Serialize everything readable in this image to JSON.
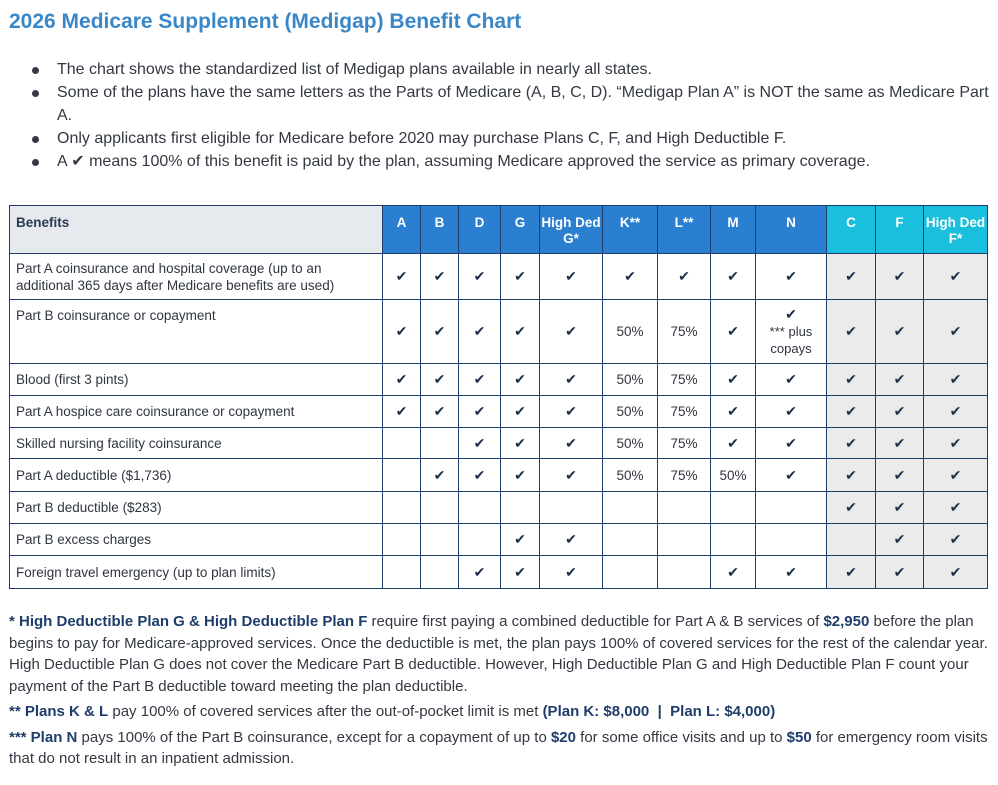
{
  "title": "2026 Medicare Supplement (Medigap) Benefit Chart",
  "bullets": [
    "The chart shows the standardized list of Medigap plans available in nearly all states.",
    "Some of the plans have the same letters as the Parts of Medicare (A, B, C, D). “Medigap Plan A” is NOT the same as Medicare Part A.",
    "Only applicants first eligible for Medicare before 2020 may purchase Plans C, F, and High Deductible F.",
    "A ✔ means 100% of this benefit is paid by the plan, assuming Medicare approved the service as primary coverage."
  ],
  "table": {
    "header": {
      "benefits": "Benefits",
      "plans": [
        {
          "label": "A",
          "color": "#2b7fd1"
        },
        {
          "label": "B",
          "color": "#2b7fd1"
        },
        {
          "label": "D",
          "color": "#2b7fd1"
        },
        {
          "label": "G",
          "color": "#2b7fd1"
        },
        {
          "label": "High Ded G*",
          "color": "#2b7fd1"
        },
        {
          "label": "K**",
          "color": "#2b7fd1"
        },
        {
          "label": "L**",
          "color": "#2b7fd1"
        },
        {
          "label": "M",
          "color": "#2b7fd1"
        },
        {
          "label": "N",
          "color": "#2b7fd1"
        },
        {
          "label": "C",
          "color": "#19bfdc"
        },
        {
          "label": "F",
          "color": "#19bfdc"
        },
        {
          "label": "High Ded F*",
          "color": "#19bfdc"
        }
      ]
    },
    "check": "✔",
    "n_copay_note": "*** plus copays",
    "rows": [
      {
        "benefit": "Part A coinsurance and hospital coverage (up to an additional 365 days after Medicare benefits are used)",
        "values": [
          "✔",
          "✔",
          "✔",
          "✔",
          "✔",
          "✔",
          "✔",
          "✔",
          "✔",
          "✔",
          "✔",
          "✔"
        ]
      },
      {
        "benefit": "Part B coinsurance or copayment",
        "values": [
          "✔",
          "✔",
          "✔",
          "✔",
          "✔",
          "50%",
          "75%",
          "✔",
          "N_NOTE",
          "✔",
          "✔",
          "✔"
        ]
      },
      {
        "benefit": "Blood (first 3 pints)",
        "values": [
          "✔",
          "✔",
          "✔",
          "✔",
          "✔",
          "50%",
          "75%",
          "✔",
          "✔",
          "✔",
          "✔",
          "✔"
        ]
      },
      {
        "benefit": "Part A hospice care coinsurance or copayment",
        "values": [
          "✔",
          "✔",
          "✔",
          "✔",
          "✔",
          "50%",
          "75%",
          "✔",
          "✔",
          "✔",
          "✔",
          "✔"
        ]
      },
      {
        "benefit": "Skilled nursing facility coinsurance",
        "values": [
          "",
          "",
          "✔",
          "✔",
          "✔",
          "50%",
          "75%",
          "✔",
          "✔",
          "✔",
          "✔",
          "✔"
        ]
      },
      {
        "benefit": "Part A deductible ($1,736)",
        "values": [
          "",
          "✔",
          "✔",
          "✔",
          "✔",
          "50%",
          "75%",
          "50%",
          "✔",
          "✔",
          "✔",
          "✔"
        ]
      },
      {
        "benefit": "Part B deductible ($283)",
        "values": [
          "",
          "",
          "",
          "",
          "",
          "",
          "",
          "",
          "",
          "✔",
          "✔",
          "✔"
        ]
      },
      {
        "benefit": "Part B excess charges",
        "values": [
          "",
          "",
          "",
          "✔",
          "✔",
          "",
          "",
          "",
          "",
          "",
          "✔",
          "✔"
        ]
      },
      {
        "benefit": "Foreign travel emergency (up to plan limits)",
        "values": [
          "",
          "",
          "✔",
          "✔",
          "✔",
          "",
          "",
          "✔",
          "✔",
          "✔",
          "✔",
          "✔"
        ]
      }
    ]
  },
  "notes": [
    {
      "segments": [
        {
          "text": "* High Deductible Plan G & High Deductible Plan F",
          "bold": true
        },
        {
          "text": " require first paying a combined deductible for Part A & B services of ",
          "bold": false
        },
        {
          "text": "$2,950",
          "bold": true
        },
        {
          "text": " before the plan begins to pay for Medicare-approved services. Once the deductible is met, the plan pays 100% of covered services for the rest of the calendar year. High Deductible Plan G does not cover the Medicare Part B deductible. However, High Deductible Plan G and High Deductible Plan F count your payment of the Part B deductible toward meeting the plan deductible.",
          "bold": false
        }
      ]
    },
    {
      "segments": [
        {
          "text": "** Plans K & L",
          "bold": true
        },
        {
          "text": " pay 100% of covered services after the out-of-pocket limit is met ",
          "bold": false
        },
        {
          "text": "(Plan K: $8,000  |  Plan L: $4,000)",
          "bold": true
        }
      ]
    },
    {
      "segments": [
        {
          "text": "*** Plan N",
          "bold": true
        },
        {
          "text": " pays 100% of the Part B coinsurance, except for a copayment of up to ",
          "bold": false
        },
        {
          "text": "$20",
          "bold": true
        },
        {
          "text": " for some office visits and up to ",
          "bold": false
        },
        {
          "text": "$50",
          "bold": true
        },
        {
          "text": " for emergency room visits that do not result in an inpatient admission.",
          "bold": false
        }
      ]
    }
  ]
}
